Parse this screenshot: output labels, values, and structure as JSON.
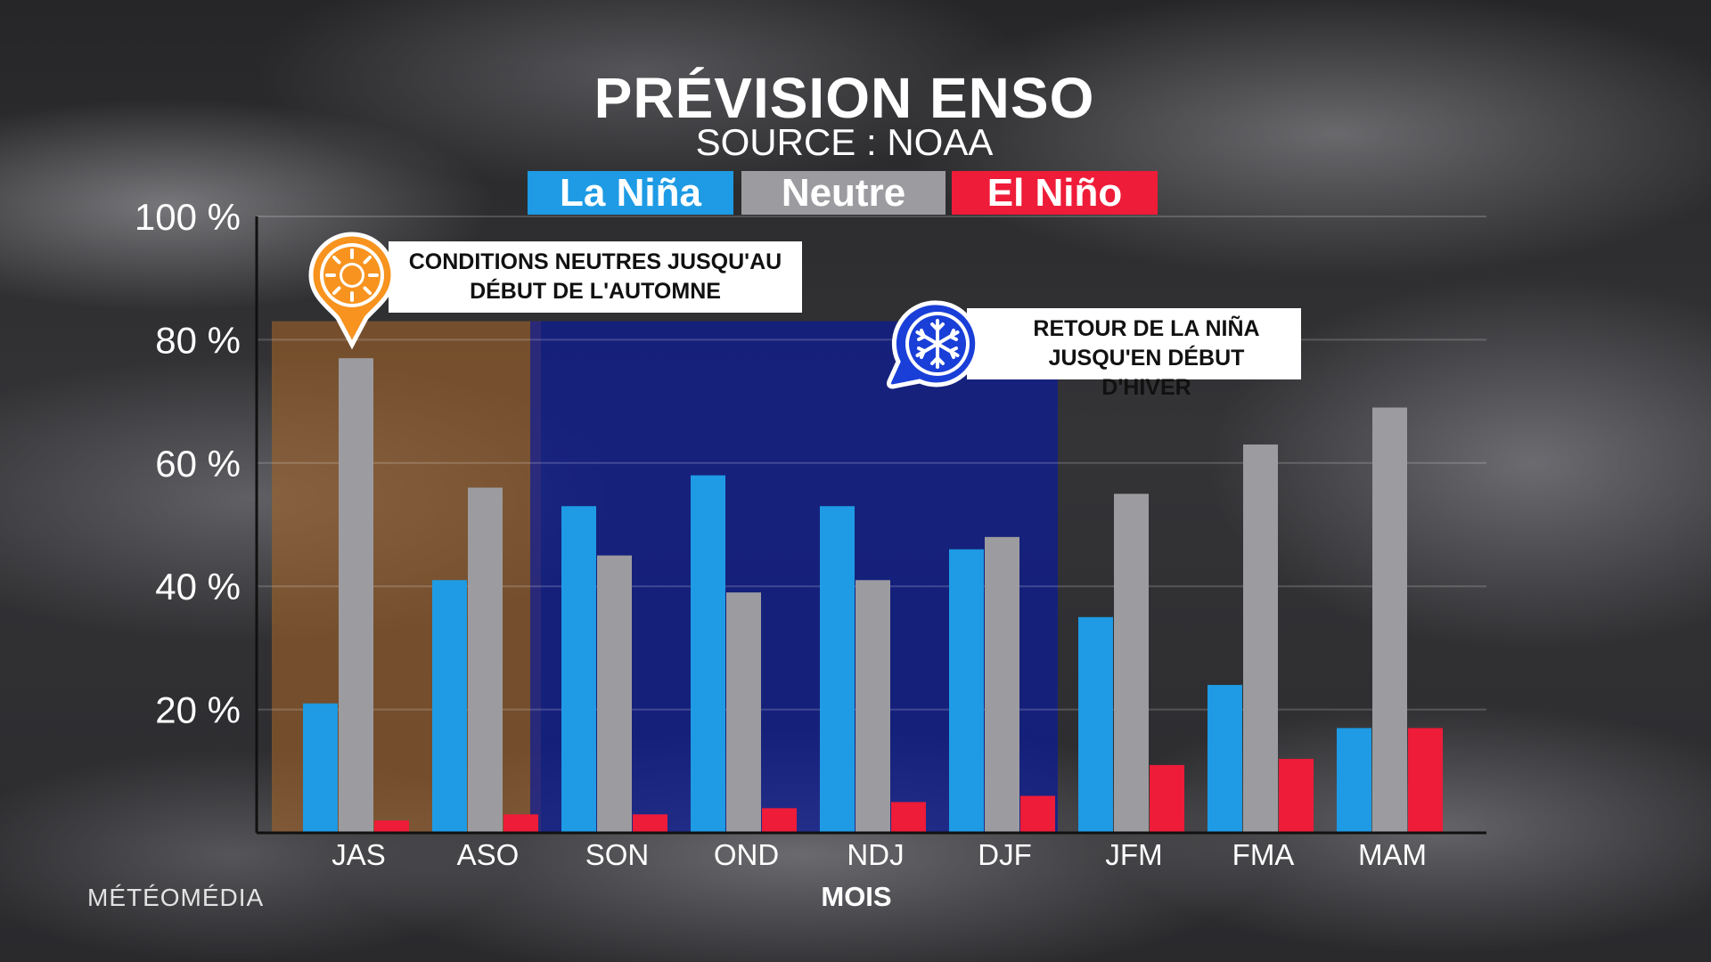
{
  "title": "PRÉVISION ENSO",
  "subtitle": "SOURCE : NOAA",
  "brand": "MÉTÉOMÉDIA",
  "callouts": {
    "neutral_line1": "CONDITIONS NEUTRES JUSQU'AU",
    "neutral_line2": "DÉBUT DE L'AUTOMNE",
    "lanina_line1": "RETOUR DE LA NIÑA",
    "lanina_line2": "JUSQU'EN DÉBUT D'HIVER",
    "neutral_icon": "sun-icon",
    "lanina_icon": "snowflake-icon"
  },
  "colors": {
    "la_nina": "#1e9be4",
    "neutre": "#9c9ca0",
    "el_nino": "#ee1c38",
    "neutral_band": "#a0622a",
    "lanina_band": "#0a1a9a",
    "pin_orange": "#f7931e",
    "pin_blue": "#1a3fd8"
  },
  "chart_data": {
    "type": "bar",
    "categories": [
      "JAS",
      "ASO",
      "SON",
      "OND",
      "NDJ",
      "DJF",
      "JFM",
      "FMA",
      "MAM"
    ],
    "series": [
      {
        "name": "La Niña",
        "values": [
          21,
          41,
          53,
          58,
          53,
          46,
          35,
          24,
          17
        ]
      },
      {
        "name": "Neutre",
        "values": [
          77,
          56,
          45,
          39,
          41,
          48,
          55,
          63,
          69
        ]
      },
      {
        "name": "El Niño",
        "values": [
          2,
          3,
          3,
          4,
          5,
          6,
          11,
          12,
          17
        ]
      }
    ],
    "xlabel": "MOIS",
    "ylabel": "",
    "ylim": [
      0,
      100
    ],
    "yticks": [
      20,
      40,
      60,
      80,
      100
    ],
    "ytick_labels": [
      "20 %",
      "40 %",
      "60 %",
      "80 %",
      "100 %"
    ],
    "grid": true,
    "legend_position": "top-center",
    "highlight_ranges": [
      {
        "from": "JAS",
        "to": "ASO",
        "meaning": "Neutre"
      },
      {
        "from": "SON",
        "to": "DJF",
        "meaning": "La Niña"
      }
    ]
  }
}
